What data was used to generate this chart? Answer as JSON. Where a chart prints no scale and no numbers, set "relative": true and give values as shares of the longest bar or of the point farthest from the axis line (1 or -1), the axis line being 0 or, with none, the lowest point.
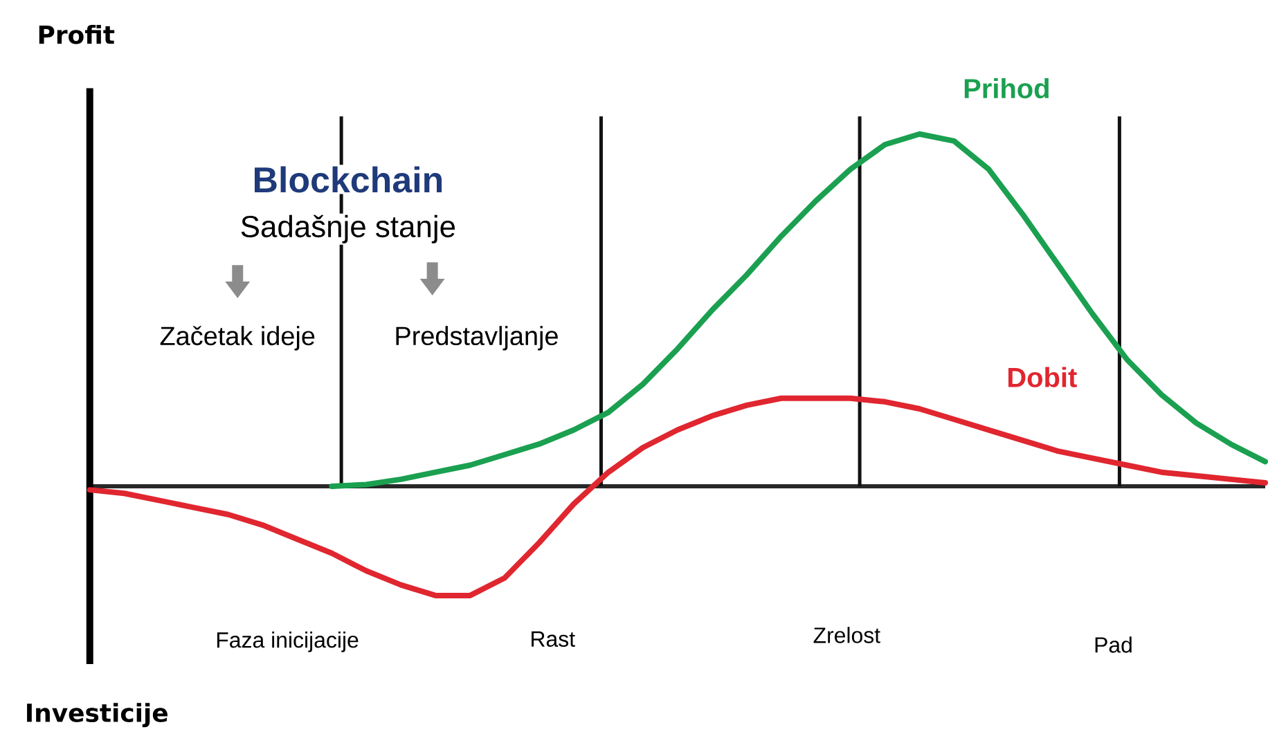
{
  "chart_data": {
    "type": "line",
    "relative": true,
    "ylabel": "Profit",
    "categories": [
      null,
      null,
      null,
      null,
      null,
      null,
      null,
      null,
      null,
      null,
      null,
      null,
      null,
      null,
      null,
      null,
      null,
      null,
      null,
      null,
      null,
      null,
      null,
      null,
      null,
      null,
      null,
      null,
      null,
      null,
      null,
      null,
      null,
      null,
      null
    ],
    "series": [
      {
        "name": "Prihod",
        "color": "#1aa050",
        "values": [
          null,
          null,
          null,
          null,
          null,
          null,
          null,
          0,
          0.005,
          0.02,
          0.04,
          0.06,
          0.09,
          0.12,
          0.16,
          0.21,
          0.29,
          0.39,
          0.5,
          0.6,
          0.71,
          0.81,
          0.9,
          0.97,
          1.0,
          0.98,
          0.9,
          0.77,
          0.63,
          0.49,
          0.36,
          0.26,
          0.18,
          0.12,
          0.07
        ]
      },
      {
        "name": "Dobit",
        "color": "#e0262f",
        "values": [
          -0.01,
          -0.02,
          -0.04,
          -0.06,
          -0.08,
          -0.11,
          -0.15,
          -0.19,
          -0.24,
          -0.28,
          -0.31,
          -0.31,
          -0.26,
          -0.16,
          -0.05,
          0.04,
          0.11,
          0.16,
          0.2,
          0.23,
          0.25,
          0.25,
          0.25,
          0.24,
          0.22,
          0.19,
          0.16,
          0.13,
          0.1,
          0.08,
          0.06,
          0.04,
          0.03,
          0.02,
          0.01
        ]
      }
    ],
    "annotations": [
      "Investicije",
      "Blockchain",
      "Sadašnje stanje",
      "Začetak ideje",
      "Predstavljanje",
      "Faza inicijacije",
      "Rast",
      "Zrelost",
      "Pad"
    ]
  }
}
